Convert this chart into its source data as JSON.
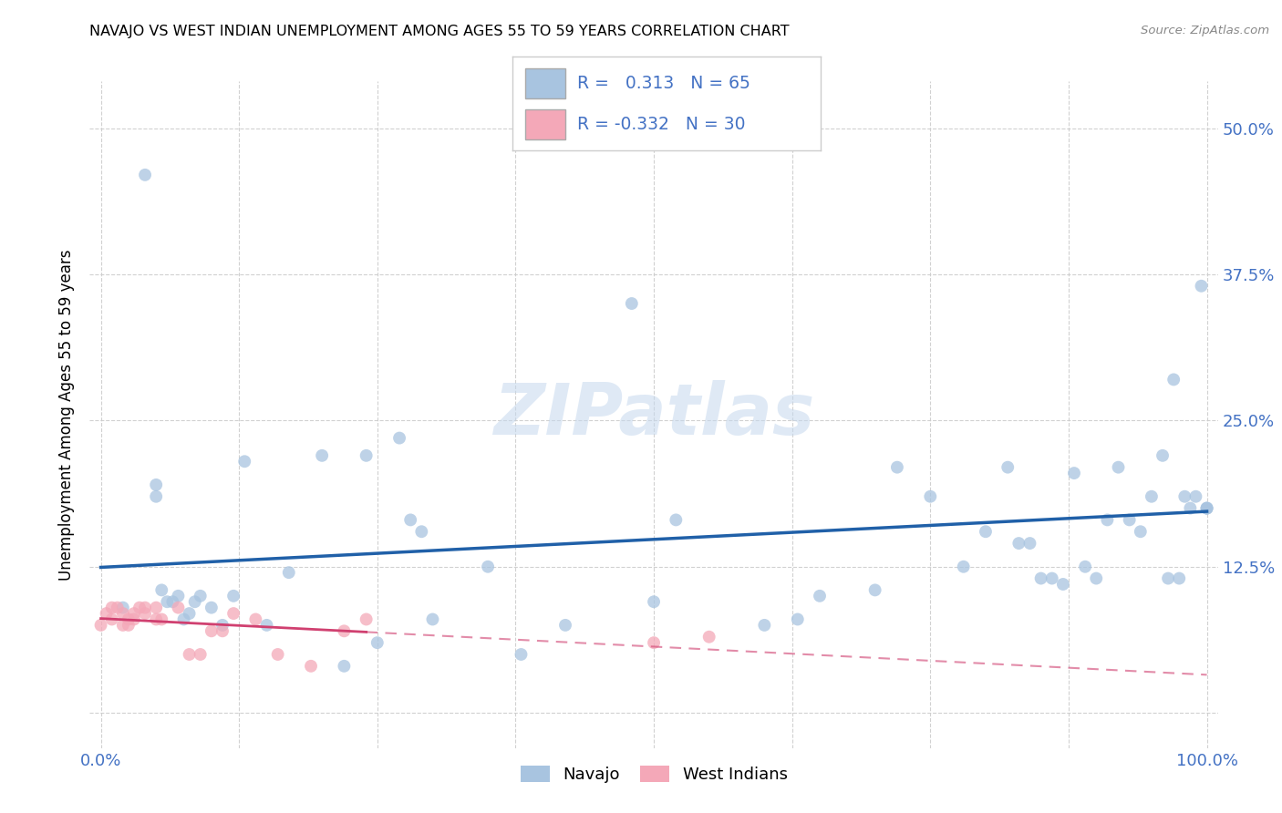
{
  "title": "NAVAJO VS WEST INDIAN UNEMPLOYMENT AMONG AGES 55 TO 59 YEARS CORRELATION CHART",
  "source": "Source: ZipAtlas.com",
  "ylabel": "Unemployment Among Ages 55 to 59 years",
  "navajo_R": 0.313,
  "navajo_N": 65,
  "westindian_R": -0.332,
  "westindian_N": 30,
  "navajo_color": "#a8c4e0",
  "westindian_color": "#f4a8b8",
  "navajo_line_color": "#2060a8",
  "westindian_line_color": "#d04070",
  "background_color": "#ffffff",
  "watermark": "ZIPatlas",
  "xlim": [
    -0.01,
    1.01
  ],
  "ylim": [
    -0.03,
    0.54
  ],
  "xticks": [
    0.0,
    0.125,
    0.25,
    0.375,
    0.5,
    0.625,
    0.75,
    0.875,
    1.0
  ],
  "xtick_labels": [
    "0.0%",
    "",
    "",
    "",
    "",
    "",
    "",
    "",
    "100.0%"
  ],
  "yticks": [
    0.0,
    0.125,
    0.25,
    0.375,
    0.5
  ],
  "ytick_labels": [
    "",
    "12.5%",
    "25.0%",
    "37.5%",
    "50.0%"
  ],
  "navajo_x": [
    0.02,
    0.04,
    0.05,
    0.05,
    0.055,
    0.06,
    0.065,
    0.07,
    0.075,
    0.08,
    0.085,
    0.09,
    0.1,
    0.11,
    0.12,
    0.13,
    0.15,
    0.17,
    0.2,
    0.22,
    0.24,
    0.25,
    0.27,
    0.28,
    0.29,
    0.3,
    0.35,
    0.38,
    0.42,
    0.48,
    0.5,
    0.52,
    0.6,
    0.63,
    0.65,
    0.7,
    0.72,
    0.75,
    0.78,
    0.8,
    0.82,
    0.83,
    0.84,
    0.85,
    0.86,
    0.87,
    0.88,
    0.89,
    0.9,
    0.91,
    0.92,
    0.93,
    0.94,
    0.95,
    0.96,
    0.965,
    0.97,
    0.975,
    0.98,
    0.985,
    0.99,
    0.995,
    1.0,
    1.0,
    1.0
  ],
  "navajo_y": [
    0.09,
    0.46,
    0.195,
    0.185,
    0.105,
    0.095,
    0.095,
    0.1,
    0.08,
    0.085,
    0.095,
    0.1,
    0.09,
    0.075,
    0.1,
    0.215,
    0.075,
    0.12,
    0.22,
    0.04,
    0.22,
    0.06,
    0.235,
    0.165,
    0.155,
    0.08,
    0.125,
    0.05,
    0.075,
    0.35,
    0.095,
    0.165,
    0.075,
    0.08,
    0.1,
    0.105,
    0.21,
    0.185,
    0.125,
    0.155,
    0.21,
    0.145,
    0.145,
    0.115,
    0.115,
    0.11,
    0.205,
    0.125,
    0.115,
    0.165,
    0.21,
    0.165,
    0.155,
    0.185,
    0.22,
    0.115,
    0.285,
    0.115,
    0.185,
    0.175,
    0.185,
    0.365,
    0.175,
    0.175,
    0.175
  ],
  "westindian_x": [
    0.0,
    0.005,
    0.01,
    0.01,
    0.015,
    0.02,
    0.02,
    0.025,
    0.025,
    0.03,
    0.03,
    0.035,
    0.04,
    0.04,
    0.05,
    0.05,
    0.055,
    0.07,
    0.08,
    0.09,
    0.1,
    0.11,
    0.12,
    0.14,
    0.16,
    0.19,
    0.22,
    0.24,
    0.5,
    0.55
  ],
  "westindian_y": [
    0.075,
    0.085,
    0.09,
    0.08,
    0.09,
    0.085,
    0.075,
    0.08,
    0.075,
    0.085,
    0.08,
    0.09,
    0.085,
    0.09,
    0.09,
    0.08,
    0.08,
    0.09,
    0.05,
    0.05,
    0.07,
    0.07,
    0.085,
    0.08,
    0.05,
    0.04,
    0.07,
    0.08,
    0.06,
    0.065
  ],
  "navajo_line_x": [
    0.0,
    1.0
  ],
  "westindian_line_x": [
    0.0,
    0.28
  ]
}
